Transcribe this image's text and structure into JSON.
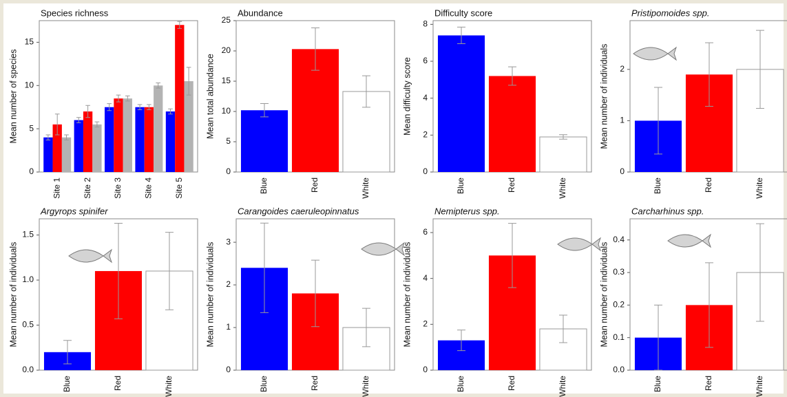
{
  "chart_data": [
    {
      "type": "bar",
      "title": "Species richness",
      "y_label": "Mean number of species",
      "categories": [
        "Site 1",
        "Site 2",
        "Site 3",
        "Site 4",
        "Site 5"
      ],
      "series": [
        {
          "color": "#0000ff",
          "values": [
            4,
            6,
            7.5,
            7.5,
            7
          ],
          "errors": [
            0.3,
            0.3,
            0.4,
            0.3,
            0.3
          ]
        },
        {
          "color": "#ff0000",
          "values": [
            5.5,
            7,
            8.5,
            7.5,
            17
          ],
          "errors": [
            1.2,
            0.7,
            0.4,
            0.3,
            0.4
          ]
        },
        {
          "color": "#b3b3b3",
          "values": [
            4,
            5.5,
            8.5,
            10,
            10.5
          ],
          "errors": [
            0.3,
            0.3,
            0.3,
            0.3,
            1.6
          ]
        }
      ],
      "ylim": [
        0,
        17.5
      ],
      "yticks": [
        0,
        5,
        10,
        15
      ]
    },
    {
      "type": "bar",
      "title": "Abundance",
      "y_label": "Mean total abundance",
      "categories": [
        "Blue",
        "Red",
        "White"
      ],
      "series": [
        {
          "colors": [
            "#0000ff",
            "#ff0000",
            "#ffffff"
          ],
          "values": [
            10.2,
            20.3,
            13.3
          ],
          "errors": [
            1.1,
            3.5,
            2.6
          ]
        }
      ],
      "ylim": [
        0,
        25
      ],
      "yticks": [
        0,
        5,
        10,
        15,
        20,
        25
      ]
    },
    {
      "type": "bar",
      "title": "Difficulty score",
      "y_label": "Mean difficulty score",
      "categories": [
        "Blue",
        "Red",
        "White"
      ],
      "series": [
        {
          "colors": [
            "#0000ff",
            "#ff0000",
            "#ffffff"
          ],
          "values": [
            7.4,
            5.2,
            1.9
          ],
          "errors": [
            0.45,
            0.5,
            0.12
          ]
        }
      ],
      "ylim": [
        0,
        8.2
      ],
      "yticks": [
        0,
        2,
        4,
        6,
        8
      ]
    },
    {
      "type": "bar",
      "title": "Pristipomoides spp.",
      "title_italic": true,
      "y_label": "Mean number of individuals",
      "categories": [
        "Blue",
        "Red",
        "White"
      ],
      "series": [
        {
          "colors": [
            "#0000ff",
            "#ff0000",
            "#ffffff"
          ],
          "values": [
            1.0,
            1.9,
            2.0
          ],
          "errors": [
            0.65,
            0.62,
            0.76
          ]
        }
      ],
      "ylim": [
        0,
        2.95
      ],
      "yticks": [
        0,
        1,
        2
      ]
    },
    {
      "type": "bar",
      "title": "Argyrops spinifer",
      "title_italic": true,
      "y_label": "Mean number of individuals",
      "categories": [
        "Blue",
        "Red",
        "White"
      ],
      "series": [
        {
          "colors": [
            "#0000ff",
            "#ff0000",
            "#ffffff"
          ],
          "values": [
            0.2,
            1.1,
            1.1
          ],
          "errors": [
            0.13,
            0.53,
            0.43
          ]
        }
      ],
      "ylim": [
        0,
        1.68
      ],
      "yticks": [
        {
          "value": 0,
          "label": "0.0"
        },
        0.5,
        {
          "value": 1,
          "label": "1.0"
        },
        1.5
      ]
    },
    {
      "type": "bar",
      "title": "Carangoides caeruleopinnatus",
      "title_italic": true,
      "y_label": "Mean number of individuals",
      "categories": [
        "Blue",
        "Red",
        "White"
      ],
      "series": [
        {
          "colors": [
            "#0000ff",
            "#ff0000",
            "#ffffff"
          ],
          "values": [
            2.4,
            1.8,
            1.0
          ],
          "errors": [
            1.05,
            0.78,
            0.45
          ]
        }
      ],
      "ylim": [
        0,
        3.55
      ],
      "yticks": [
        0,
        1,
        2,
        3
      ]
    },
    {
      "type": "bar",
      "title": "Nemipterus spp.",
      "title_italic": true,
      "y_label": "Mean number of individuals",
      "categories": [
        "Blue",
        "Red",
        "White"
      ],
      "series": [
        {
          "colors": [
            "#0000ff",
            "#ff0000",
            "#ffffff"
          ],
          "values": [
            1.3,
            5.0,
            1.8
          ],
          "errors": [
            0.45,
            1.4,
            0.6
          ]
        }
      ],
      "ylim": [
        0,
        6.6
      ],
      "yticks": [
        0,
        2,
        4,
        6
      ]
    },
    {
      "type": "bar",
      "title": "Carcharhinus spp.",
      "title_italic": true,
      "y_label": "Mean number of individuals",
      "categories": [
        "Blue",
        "Red",
        "White"
      ],
      "series": [
        {
          "colors": [
            "#0000ff",
            "#ff0000",
            "#ffffff"
          ],
          "values": [
            0.1,
            0.2,
            0.3
          ],
          "errors": [
            0.1,
            0.13,
            0.15
          ]
        }
      ],
      "ylim": [
        0,
        0.465
      ],
      "yticks": [
        {
          "value": 0,
          "label": "0.0"
        },
        0.1,
        0.2,
        0.3,
        0.4
      ]
    }
  ]
}
